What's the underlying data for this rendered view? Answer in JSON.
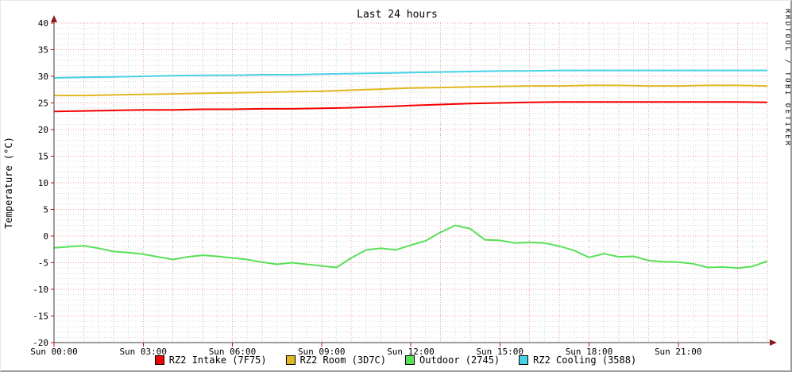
{
  "watermark": "RRDTOOL / TOBI OETIKER",
  "chart_data": {
    "type": "line",
    "title": "Last 24 hours",
    "xlabel": "",
    "ylabel": "Temperature (°C)",
    "ylim": [
      -20,
      40
    ],
    "xlim_hours": [
      0,
      24
    ],
    "y_major_step": 5,
    "y_minor_step": 1,
    "x_major_step_hours": 1,
    "x_minor_step_hours": 0.5,
    "grid": {
      "major_color": "#f0a0a0",
      "minor_color": "#d9d9d9",
      "axis_color": "#3b3b3b",
      "arrow_color": "#8b1a1a",
      "grid_on": true
    },
    "legend_position": "bottom",
    "x_ticks": [
      {
        "hour": 0,
        "label": "Sun 00:00"
      },
      {
        "hour": 3,
        "label": "Sun 03:00"
      },
      {
        "hour": 6,
        "label": "Sun 06:00"
      },
      {
        "hour": 9,
        "label": "Sun 09:00"
      },
      {
        "hour": 12,
        "label": "Sun 12:00"
      },
      {
        "hour": 15,
        "label": "Sun 15:00"
      },
      {
        "hour": 18,
        "label": "Sun 18:00"
      },
      {
        "hour": 21,
        "label": "Sun 21:00"
      }
    ],
    "series": [
      {
        "name": "RZ2 Intake (7F75)",
        "color": "#f40000",
        "x": [
          0,
          1,
          2,
          3,
          4,
          5,
          6,
          7,
          8,
          9,
          10,
          11,
          12,
          13,
          14,
          15,
          16,
          17,
          18,
          19,
          20,
          21,
          22,
          23,
          24
        ],
        "values": [
          23.4,
          23.5,
          23.6,
          23.7,
          23.7,
          23.8,
          23.8,
          23.9,
          23.9,
          24.0,
          24.1,
          24.3,
          24.5,
          24.7,
          24.9,
          25.0,
          25.1,
          25.2,
          25.2,
          25.2,
          25.2,
          25.2,
          25.2,
          25.2,
          25.1
        ]
      },
      {
        "name": "RZ2 Room (3D7C)",
        "color": "#e0b820",
        "x": [
          0,
          1,
          2,
          3,
          4,
          5,
          6,
          7,
          8,
          9,
          10,
          11,
          12,
          13,
          14,
          15,
          16,
          17,
          18,
          19,
          20,
          21,
          22,
          23,
          24
        ],
        "values": [
          26.4,
          26.4,
          26.5,
          26.6,
          26.7,
          26.8,
          26.9,
          27.0,
          27.1,
          27.2,
          27.4,
          27.6,
          27.8,
          27.9,
          28.0,
          28.1,
          28.2,
          28.2,
          28.3,
          28.3,
          28.2,
          28.2,
          28.3,
          28.3,
          28.2
        ]
      },
      {
        "name": "Outdoor (2745)",
        "color": "#58e058",
        "x": [
          0,
          0.5,
          1,
          1.5,
          2,
          2.5,
          3,
          3.5,
          4,
          4.5,
          5,
          5.5,
          6,
          6.5,
          7,
          7.5,
          8,
          8.5,
          9,
          9.5,
          10,
          10.5,
          11,
          11.5,
          12,
          12.5,
          13,
          13.5,
          14,
          14.5,
          15,
          15.5,
          16,
          16.5,
          17,
          17.5,
          18,
          18.5,
          19,
          19.5,
          20,
          20.5,
          21,
          21.5,
          22,
          22.5,
          23,
          23.5,
          24
        ],
        "values": [
          -2.2,
          -2.0,
          -1.8,
          -2.3,
          -2.9,
          -3.1,
          -3.4,
          -3.9,
          -4.4,
          -3.9,
          -3.6,
          -3.8,
          -4.1,
          -4.4,
          -4.9,
          -5.3,
          -5.0,
          -5.3,
          -5.6,
          -5.9,
          -4.1,
          -2.6,
          -2.3,
          -2.6,
          -1.7,
          -0.9,
          0.7,
          2.0,
          1.4,
          -0.7,
          -0.8,
          -1.3,
          -1.2,
          -1.3,
          -1.9,
          -2.7,
          -4.0,
          -3.3,
          -3.9,
          -3.8,
          -4.6,
          -4.8,
          -4.9,
          -5.2,
          -5.9,
          -5.8,
          -6.0,
          -5.7,
          -4.7
        ]
      },
      {
        "name": "RZ2 Cooling (3588)",
        "color": "#47d2e6",
        "x": [
          0,
          1,
          2,
          3,
          4,
          5,
          6,
          7,
          8,
          9,
          10,
          11,
          12,
          13,
          14,
          15,
          16,
          17,
          18,
          19,
          20,
          21,
          22,
          23,
          24
        ],
        "values": [
          29.7,
          29.8,
          29.9,
          30.0,
          30.1,
          30.2,
          30.2,
          30.3,
          30.3,
          30.4,
          30.5,
          30.6,
          30.7,
          30.8,
          30.9,
          31.0,
          31.0,
          31.1,
          31.1,
          31.1,
          31.1,
          31.1,
          31.1,
          31.1,
          31.1
        ]
      }
    ]
  }
}
